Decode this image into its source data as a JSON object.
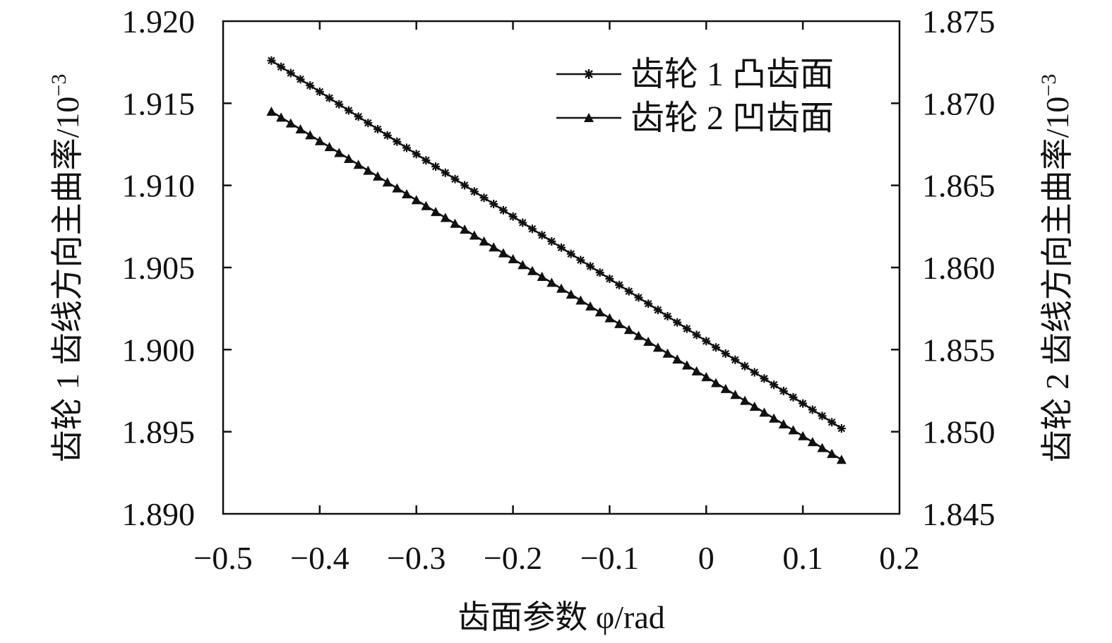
{
  "chart_data": {
    "type": "line",
    "title": "",
    "xlabel": "齿面参数 φ/rad",
    "ylabel_left": "齿轮 1 齿线方向主曲率/10",
    "ylabel_right": "齿轮 2 齿线方向主曲率/10",
    "ylabel_exponent": "−3",
    "xlim": [
      -0.5,
      0.2
    ],
    "ylim_left": [
      1.89,
      1.92
    ],
    "ylim_right": [
      1.845,
      1.875
    ],
    "x_ticks": [
      -0.5,
      -0.4,
      -0.3,
      -0.2,
      -0.1,
      0,
      0.1,
      0.2
    ],
    "x_tick_labels": [
      "−0.5",
      "−0.4",
      "−0.3",
      "−0.2",
      "−0.1",
      "0",
      "0.1",
      "0.2"
    ],
    "y_ticks_left": [
      1.89,
      1.895,
      1.9,
      1.905,
      1.91,
      1.915,
      1.92
    ],
    "y_tick_labels_left": [
      "1.890",
      "1.895",
      "1.900",
      "1.905",
      "1.910",
      "1.915",
      "1.920"
    ],
    "y_ticks_right": [
      1.845,
      1.85,
      1.855,
      1.86,
      1.865,
      1.87,
      1.875
    ],
    "y_tick_labels_right": [
      "1.845",
      "1.850",
      "1.855",
      "1.860",
      "1.865",
      "1.870",
      "1.875"
    ],
    "grid": false,
    "legend_position": "top-right",
    "x_start": -0.45,
    "x_end": 0.14,
    "num_points": 60,
    "series": [
      {
        "name": "齿轮 1 凸齿面",
        "axis": "left",
        "marker": "asterisk",
        "y_start": 1.9176,
        "y_end": 1.8952
      },
      {
        "name": "齿轮 2 凹齿面",
        "axis": "right",
        "marker": "triangle",
        "y_start": 1.8695,
        "y_end": 1.8483
      }
    ]
  },
  "colors": {
    "line": "#111111",
    "background": "#ffffff"
  }
}
